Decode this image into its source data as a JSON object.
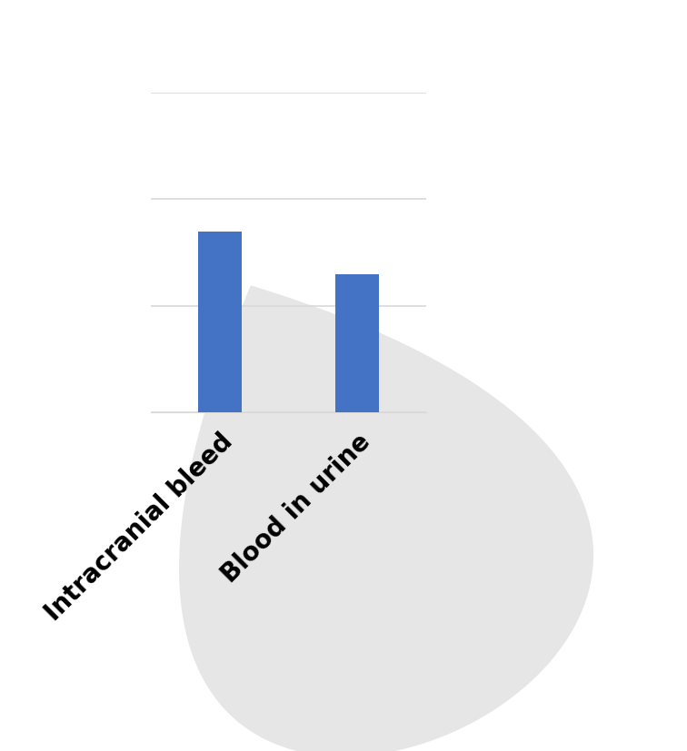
{
  "chart_data": {
    "type": "bar",
    "categories": [
      "Intracranial bleed",
      "Blood in urine"
    ],
    "values": [
      1.7,
      1.3
    ],
    "color": "#4472c4",
    "ylim": [
      0,
      3
    ],
    "yticks": [
      0,
      1,
      2,
      3
    ],
    "grid": true,
    "tick_labels": "x"
  }
}
